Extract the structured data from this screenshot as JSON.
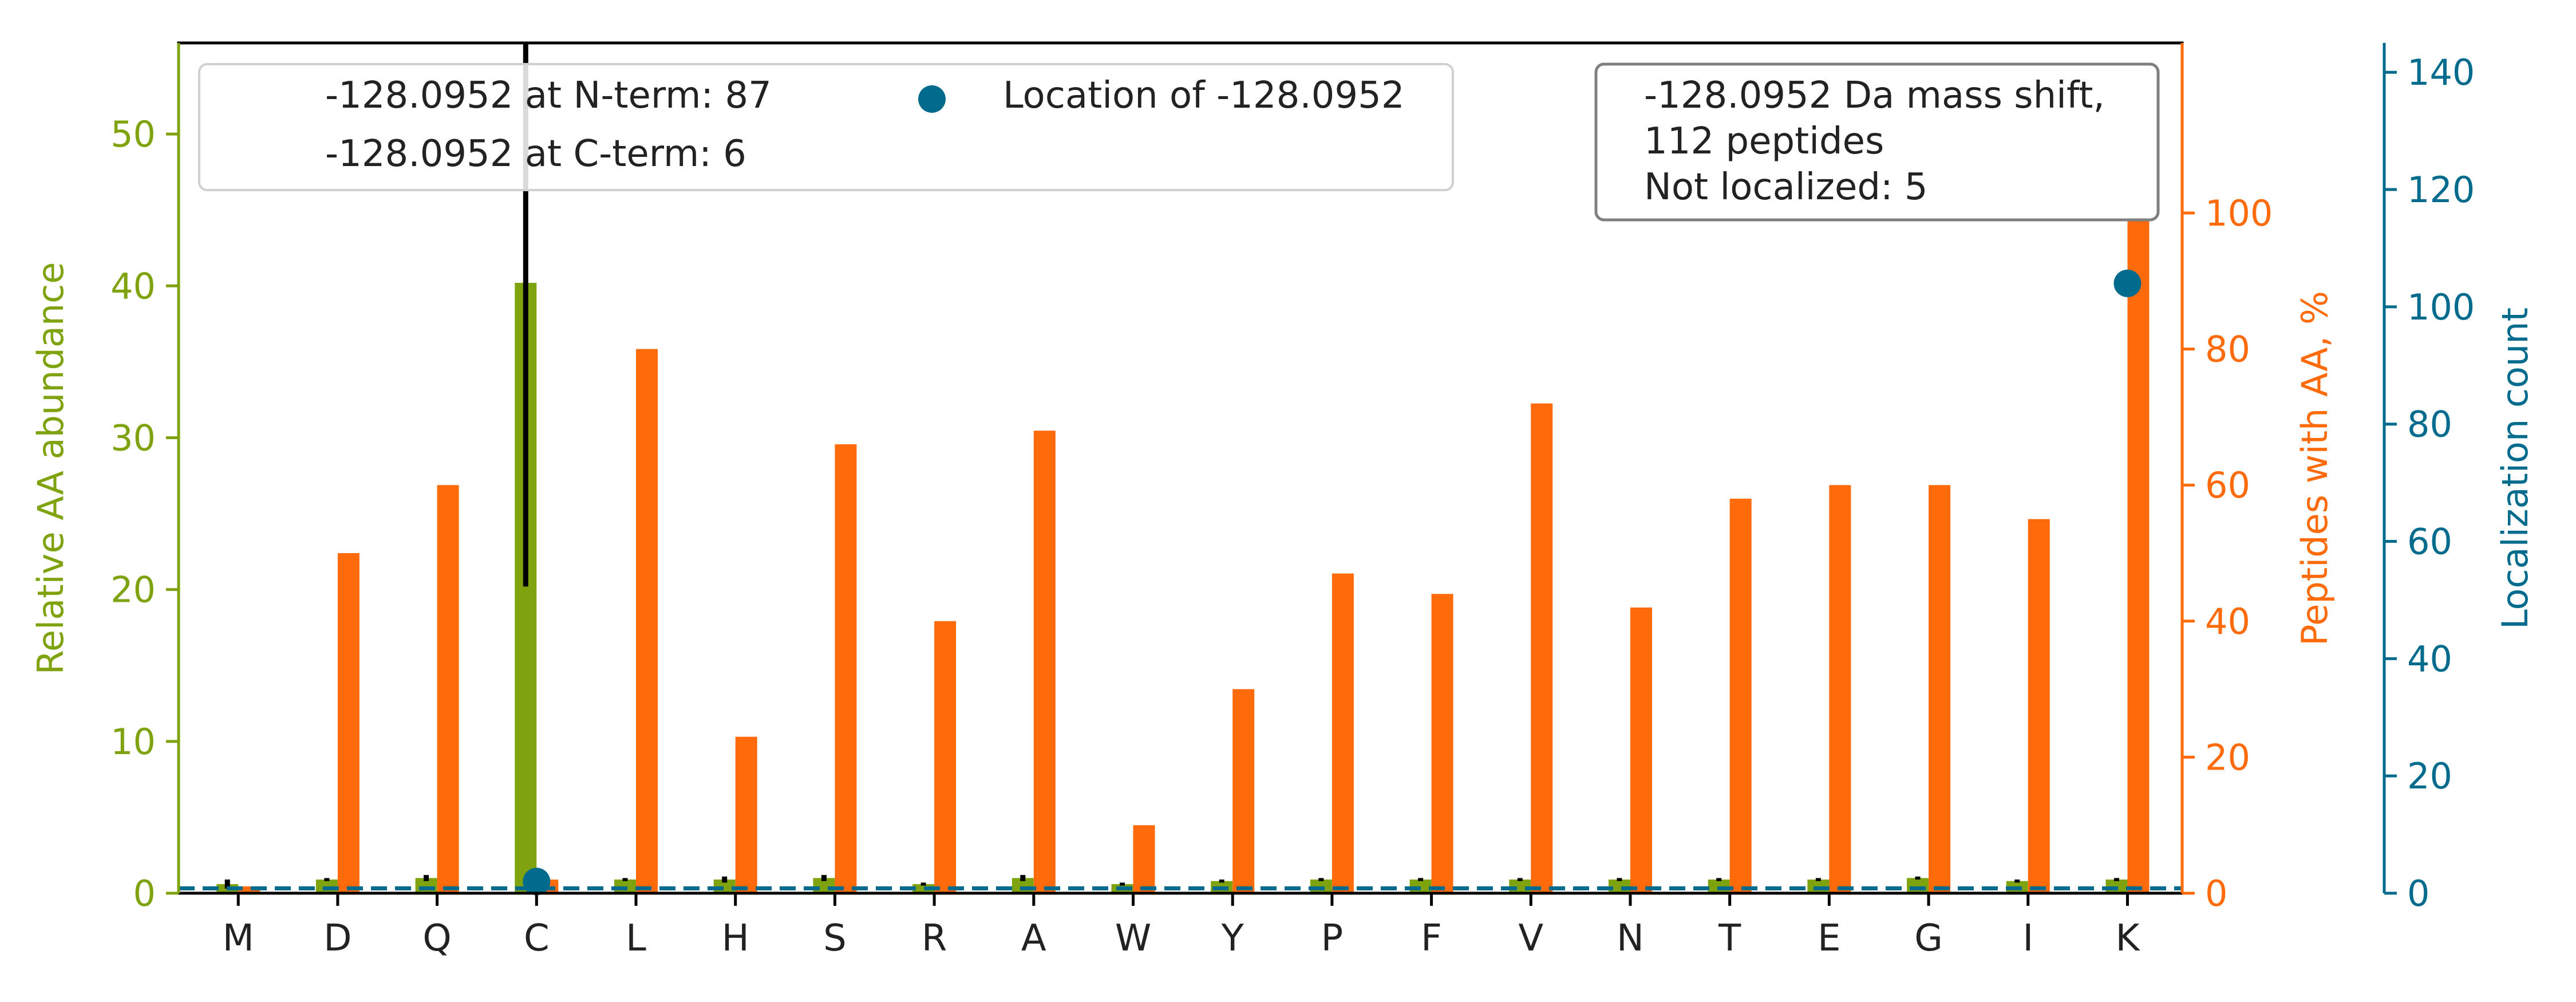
{
  "colors": {
    "abundance": "#7fa30f",
    "peptides": "#ff6a0a",
    "localization": "#006b8c",
    "errorbar": "#000000",
    "axis": "#000000",
    "text": "#222222"
  },
  "chart_data": {
    "type": "bar",
    "categories": [
      "M",
      "D",
      "Q",
      "C",
      "L",
      "H",
      "S",
      "R",
      "A",
      "W",
      "Y",
      "P",
      "F",
      "V",
      "N",
      "T",
      "E",
      "G",
      "I",
      "K"
    ],
    "left_axis": {
      "label": "Relative AA abundance",
      "ylim": [
        0,
        56
      ],
      "ticks": [
        0,
        10,
        20,
        30,
        40,
        50
      ]
    },
    "right_axis": {
      "label": "Peptides with AA, %",
      "ylim": [
        0,
        125
      ],
      "ticks": [
        0,
        20,
        40,
        60,
        80,
        100
      ]
    },
    "third_axis": {
      "label": "Localization count",
      "ylim": [
        0,
        145
      ],
      "ticks": [
        0,
        20,
        40,
        60,
        80,
        100,
        120,
        140
      ]
    },
    "series": [
      {
        "key": "abundance",
        "axis": "left",
        "values": [
          0.6,
          0.9,
          1.0,
          40.2,
          0.9,
          0.9,
          1.0,
          0.6,
          1.0,
          0.6,
          0.8,
          0.9,
          0.9,
          0.9,
          0.9,
          0.9,
          0.9,
          1.0,
          0.8,
          0.9
        ],
        "errors": [
          0.3,
          0.1,
          0.2,
          20.0,
          0.1,
          0.2,
          0.2,
          0.1,
          0.2,
          0.1,
          0.1,
          0.1,
          0.1,
          0.1,
          0.1,
          0.1,
          0.1,
          0.1,
          0.1,
          0.1
        ]
      },
      {
        "key": "peptides",
        "axis": "right",
        "values": [
          1,
          50,
          60,
          2,
          80,
          23,
          66,
          40,
          68,
          10,
          30,
          47,
          44,
          72,
          42,
          58,
          60,
          60,
          55,
          112
        ]
      },
      {
        "key": "localization",
        "axis": "third",
        "points": [
          {
            "category": "C",
            "value": 2
          },
          {
            "category": "K",
            "value": 104
          }
        ]
      }
    ],
    "reference_line": {
      "axis": "left",
      "value": 1.0,
      "style": "dashed"
    },
    "legend": {
      "placement": "top-left",
      "entries": [
        "-128.0952 at N-term: 87",
        "-128.0952 at C-term: 6",
        "Location of -128.0952"
      ]
    },
    "info_box": {
      "placement": "top-right",
      "lines": [
        "-128.0952 Da mass shift,",
        "112 peptides",
        "Not localized: 5"
      ]
    }
  }
}
